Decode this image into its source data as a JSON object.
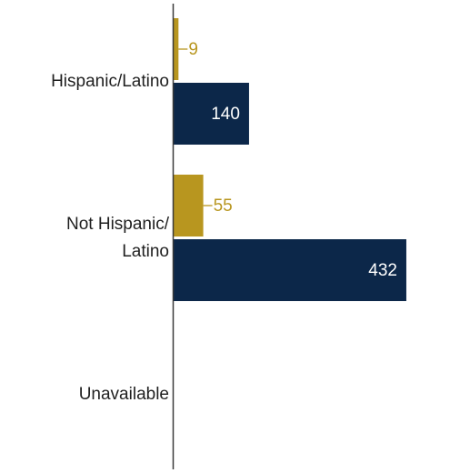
{
  "chart_data": {
    "type": "bar",
    "orientation": "horizontal",
    "categories": [
      "Hispanic/Latino",
      "Not Hispanic/\nLatino",
      "Unavailable"
    ],
    "series": [
      {
        "values": [
          9,
          55,
          null
        ],
        "color": "#b8961f"
      },
      {
        "values": [
          140,
          432,
          null
        ],
        "color": "#0c2749"
      }
    ],
    "value_label_colors": [
      "#b8961f",
      "#ffffff"
    ],
    "xlim": [
      0,
      450
    ],
    "grid": false,
    "legend": "none"
  }
}
